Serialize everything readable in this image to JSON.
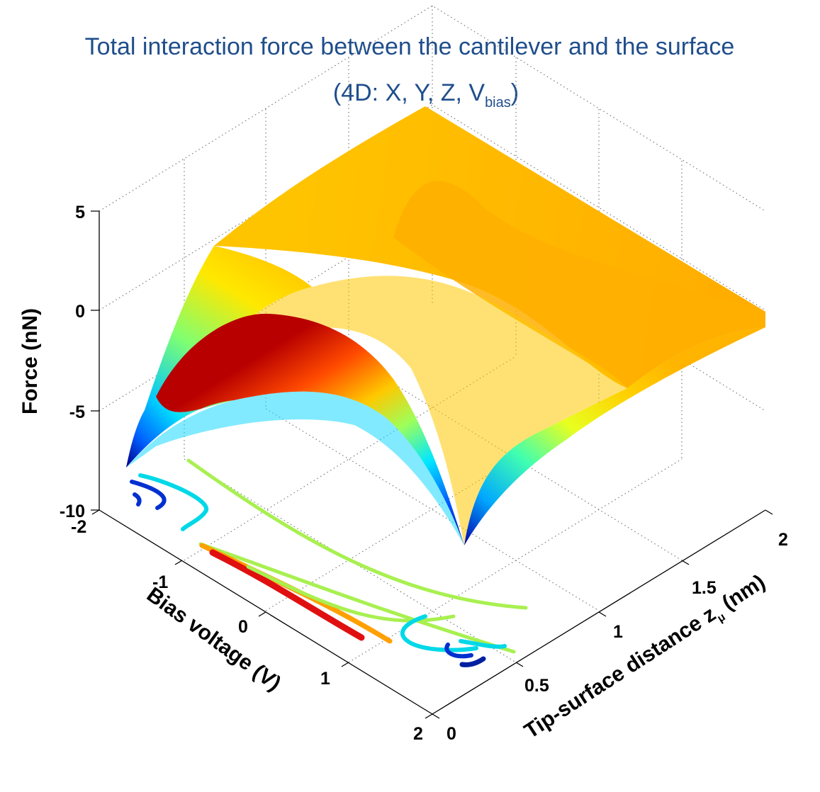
{
  "title": {
    "main": "Total interaction force between the cantilever and the surface",
    "sub_prefix": "(4D: X, Y, Z, V",
    "sub_subscript": "bias",
    "sub_suffix": ")"
  },
  "chart_data": {
    "type": "surface3d",
    "z_axis": {
      "label": "Force (nN)",
      "ticks": [
        "5",
        "0",
        "-5",
        "-10"
      ],
      "range": [
        -10,
        5
      ]
    },
    "x_axis": {
      "label": "Bias voltage (V)",
      "ticks": [
        "-2",
        "-1",
        "0",
        "1",
        "2"
      ],
      "range": [
        -2,
        2
      ]
    },
    "y_axis": {
      "label_prefix": "Tip-surface distance z",
      "label_subscript": "μ",
      "label_suffix": " (nm)",
      "ticks": [
        "0",
        "0.5",
        "1",
        "1.5",
        "2"
      ],
      "range": [
        0,
        2
      ]
    },
    "grid": true,
    "colormap": "jet",
    "surface_samples": {
      "bias_V": [
        -2,
        -1,
        0,
        1,
        2
      ],
      "distance_nm": [
        0.2,
        0.5,
        1.0,
        2.0
      ],
      "force_nN": [
        [
          -7.5,
          -2.5,
          -0.3,
          1.4
        ],
        [
          -2.5,
          0.0,
          0.7,
          1.5
        ],
        [
          -0.9,
          0.5,
          0.9,
          1.6
        ],
        [
          -2.5,
          0.0,
          0.7,
          1.5
        ],
        [
          -7.5,
          -2.5,
          -0.3,
          1.4
        ]
      ]
    },
    "contour_levels": [
      "dark blue",
      "cyan",
      "light green",
      "orange",
      "red"
    ]
  }
}
